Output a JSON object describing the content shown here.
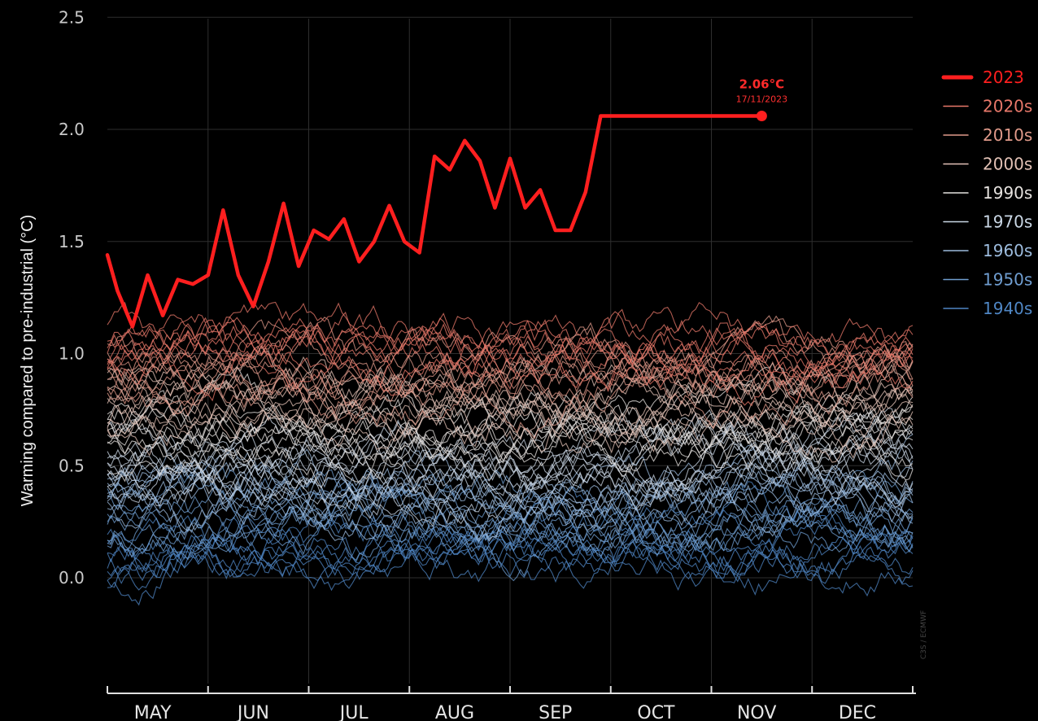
{
  "chart_data": {
    "type": "line",
    "title": "",
    "xlabel": "",
    "ylabel": "Warming compared to pre-industrial (°C)",
    "ylim": [
      -0.5,
      2.5
    ],
    "yticks": [
      "2.5",
      "2.0",
      "1.5",
      "1.0",
      "0.5",
      "0.0"
    ],
    "categories": [
      "MAY",
      "JUN",
      "JUL",
      "AUG",
      "SEP",
      "OCT",
      "NOV",
      "DEC"
    ],
    "grid": true,
    "legend_position": "right",
    "highlight": {
      "name": "2023",
      "color": "#ff1f1f",
      "x": [
        0.0,
        0.1,
        0.25,
        0.4,
        0.55,
        0.7,
        0.85,
        1.0,
        1.15,
        1.3,
        1.45,
        1.6,
        1.75,
        1.9,
        2.05,
        2.2,
        2.35,
        2.5,
        2.65,
        2.8,
        2.95,
        3.1,
        3.25,
        3.4,
        3.55,
        3.7,
        3.85,
        4.0,
        4.15,
        4.3,
        4.45,
        4.6,
        4.75,
        4.9,
        5.05,
        5.2,
        5.35,
        5.5,
        5.65,
        5.8,
        5.95,
        6.1,
        6.25,
        6.4,
        6.55
      ],
      "y": [
        1.44,
        1.28,
        1.12,
        1.35,
        1.17,
        1.33,
        1.31,
        1.35,
        1.64,
        1.35,
        1.21,
        1.41,
        1.67,
        1.39,
        1.55,
        1.51,
        1.6,
        1.41,
        1.5,
        1.66,
        1.5,
        1.45,
        1.88,
        1.82,
        1.95,
        1.86,
        1.65,
        1.87,
        1.65,
        1.73,
        1.55,
        1.55,
        1.72,
        2.06,
        2.06,
        2.06,
        2.06,
        2.06,
        2.06,
        2.06,
        2.06,
        2.06,
        2.06,
        2.06,
        2.06
      ],
      "annotation_value": "2.06°C",
      "annotation_date": "17/11/2023",
      "annotation_x": 6.5,
      "annotation_y": 2.06
    },
    "series": [
      {
        "name": "2023",
        "color": "#ff1f1f"
      },
      {
        "name": "2020s",
        "color": "#e8786a"
      },
      {
        "name": "2010s",
        "color": "#e09a8a"
      },
      {
        "name": "2000s",
        "color": "#e3c2b6"
      },
      {
        "name": "1990s",
        "color": "#e6e2df"
      },
      {
        "name": "1970s",
        "color": "#c9d6e4"
      },
      {
        "name": "1960s",
        "color": "#9cbbdd"
      },
      {
        "name": "1950s",
        "color": "#6f9dd0"
      },
      {
        "name": "1940s",
        "color": "#4f86c4"
      }
    ],
    "background_lines_per_group": 9
  },
  "credit": "C3S / ECMWF"
}
